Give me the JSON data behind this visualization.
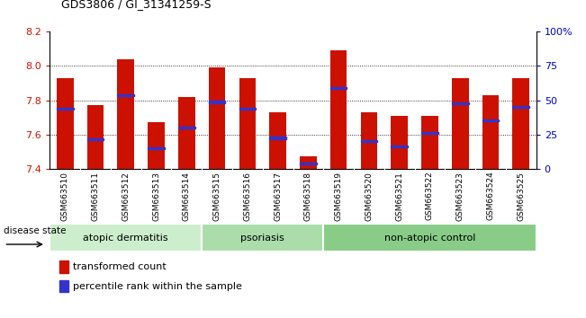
{
  "title": "GDS3806 / GI_31341259-S",
  "samples": [
    "GSM663510",
    "GSM663511",
    "GSM663512",
    "GSM663513",
    "GSM663514",
    "GSM663515",
    "GSM663516",
    "GSM663517",
    "GSM663518",
    "GSM663519",
    "GSM663520",
    "GSM663521",
    "GSM663522",
    "GSM663523",
    "GSM663524",
    "GSM663525"
  ],
  "bar_values": [
    7.93,
    7.77,
    8.04,
    7.67,
    7.82,
    7.99,
    7.93,
    7.73,
    7.47,
    8.09,
    7.73,
    7.71,
    7.71,
    7.93,
    7.83,
    7.93
  ],
  "blue_positions": [
    7.75,
    7.57,
    7.83,
    7.52,
    7.64,
    7.79,
    7.75,
    7.58,
    7.43,
    7.87,
    7.56,
    7.53,
    7.61,
    7.78,
    7.68,
    7.76
  ],
  "bar_color": "#cc1100",
  "blue_color": "#3333cc",
  "ymin": 7.4,
  "ymax": 8.2,
  "yticks_left": [
    7.4,
    7.6,
    7.8,
    8.0,
    8.2
  ],
  "yticks_right": [
    0,
    25,
    50,
    75,
    100
  ],
  "ytick_labels_right": [
    "0",
    "25",
    "50",
    "75",
    "100%"
  ],
  "ylabel_right_color": "#0000cc",
  "ylabel_left_color": "#cc1100",
  "groups": [
    {
      "label": "atopic dermatitis",
      "start": 0,
      "end": 5,
      "color": "#cceecc"
    },
    {
      "label": "psoriasis",
      "start": 5,
      "end": 9,
      "color": "#aaddaa"
    },
    {
      "label": "non-atopic control",
      "start": 9,
      "end": 16,
      "color": "#88cc88"
    }
  ],
  "disease_state_label": "disease state",
  "legend_red_label": "transformed count",
  "legend_blue_label": "percentile rank within the sample",
  "bar_width": 0.55,
  "tick_bg_color": "#d8d8d8"
}
